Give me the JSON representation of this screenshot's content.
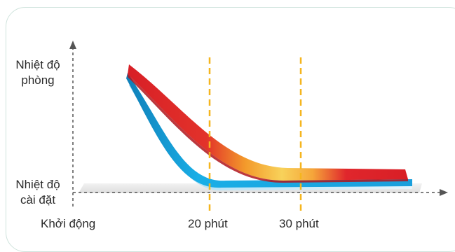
{
  "labels": {
    "y_room_line1": "Nhiệt độ",
    "y_room_line2": "phòng",
    "y_set_line1": "Nhiệt độ",
    "y_set_line2": "cài đặt",
    "x_start": "Khởi động",
    "x_20": "20 phút",
    "x_30": "30 phút"
  },
  "colors": {
    "frame_border": "#cfe3dc",
    "axis": "#555555",
    "marker_line": "#f5b51e",
    "red": "#d81f26",
    "orange": "#f39a2b",
    "yellow": "#f8d25a",
    "blue": "#19aee6",
    "light_blue": "#bfe6f7",
    "shadow": "#d9d9d9"
  }
}
